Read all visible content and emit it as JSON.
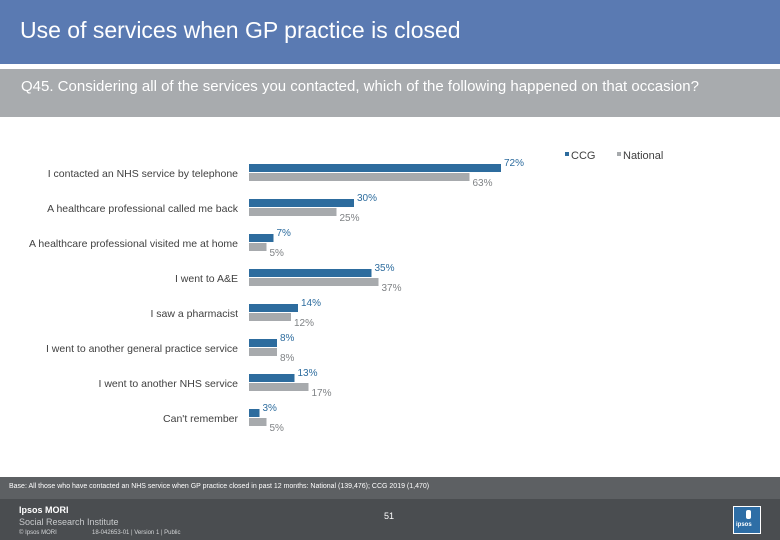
{
  "header": {
    "title": "Use of services when GP practice is closed",
    "question": "Q45. Considering all of the services you contacted, which of the following happened on that occasion?"
  },
  "chart_data": {
    "type": "bar",
    "orientation": "horizontal",
    "categories": [
      "I contacted an NHS service by telephone",
      "A healthcare professional called me back",
      "A healthcare professional visited me at home",
      "I went to A&E",
      "I saw a pharmacist",
      "I went to another general practice service",
      "I went to another NHS service",
      "Can't remember"
    ],
    "series": [
      {
        "name": "CCG",
        "color": "#2d6c9e",
        "values": [
          72,
          30,
          7,
          35,
          14,
          8,
          13,
          3
        ],
        "labels": [
          "72%",
          "30%",
          "7%",
          "35%",
          "14%",
          "8%",
          "13%",
          "3%"
        ]
      },
      {
        "name": "National",
        "color": "#a7aaad",
        "values": [
          63,
          25,
          5,
          37,
          12,
          8,
          17,
          5
        ],
        "labels": [
          "63%",
          "25%",
          "5%",
          "37%",
          "12%",
          "8%",
          "17%",
          "5%"
        ]
      }
    ],
    "xlim": [
      0,
      100
    ],
    "grid": false,
    "legend": "top-right"
  },
  "footer": {
    "base_note": "Base: All those who have contacted an NHS service when GP practice closed in past 12 months: National (139,476); CCG 2019 (1,470)",
    "brand": "Ipsos MORI",
    "brand_sub": "Social Research Institute",
    "copyright": "© Ipsos MORI",
    "job_ref": "18-042653-01 | Version 1 | Public",
    "page_number": "51",
    "logo_text": "ipsos"
  }
}
